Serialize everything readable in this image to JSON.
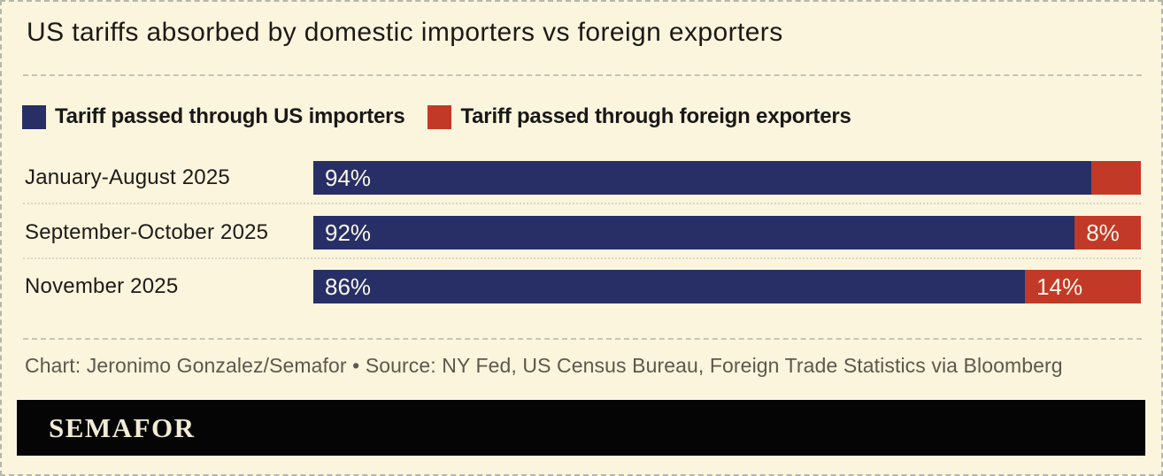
{
  "title": "US tariffs absorbed by domestic importers vs foreign exporters",
  "legend": {
    "items": [
      {
        "label": "Tariff passed through US importers",
        "color": "#272f66"
      },
      {
        "label": "Tariff passed through foreign exporters",
        "color": "#c23a27"
      }
    ]
  },
  "chart_data": {
    "type": "bar",
    "orientation": "horizontal",
    "stacked": true,
    "value_unit": "percent",
    "xlim": [
      0,
      100
    ],
    "grid": false,
    "legend_position": "top",
    "title": "US tariffs absorbed by domestic importers vs foreign exporters",
    "categories": [
      "January-August 2025",
      "September-October 2025",
      "November 2025"
    ],
    "series": [
      {
        "name": "Tariff passed through US importers",
        "color": "#272f66",
        "values": [
          94,
          92,
          86
        ]
      },
      {
        "name": "Tariff passed through foreign exporters",
        "color": "#c23a27",
        "values": [
          6,
          8,
          14
        ]
      }
    ],
    "rows": [
      {
        "label": "January-August 2025",
        "importer_label": "94%",
        "exporter_label": "",
        "importer_width": "94%",
        "exporter_width": "6%"
      },
      {
        "label": "September-October 2025",
        "importer_label": "92%",
        "exporter_label": "8%",
        "importer_width": "92%",
        "exporter_width": "8%"
      },
      {
        "label": "November 2025",
        "importer_label": "86%",
        "exporter_label": "14%",
        "importer_width": "86%",
        "exporter_width": "14%"
      }
    ]
  },
  "caption": "Chart: Jeronimo Gonzalez/Semafor • Source: NY Fed, US Census Bureau, Foreign Trade Statistics via Bloomberg",
  "footer": {
    "brand": "SEMAFOR"
  },
  "colors": {
    "background": "#faf5dc",
    "importer_blue": "#272f66",
    "exporter_red": "#c23a27",
    "footer_black": "#050505",
    "bar_label_text": "#fcf8ea",
    "caption_text": "#5b594c",
    "title_text": "#1b1a17",
    "border_dash": "#b6b6ac"
  }
}
